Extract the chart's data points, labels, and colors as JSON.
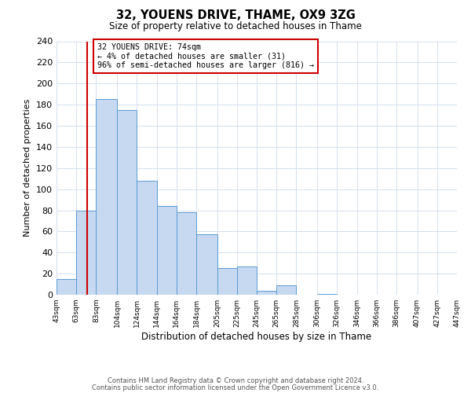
{
  "title": "32, YOUENS DRIVE, THAME, OX9 3ZG",
  "subtitle": "Size of property relative to detached houses in Thame",
  "xlabel": "Distribution of detached houses by size in Thame",
  "ylabel": "Number of detached properties",
  "bar_edges": [
    43,
    63,
    83,
    104,
    124,
    144,
    164,
    184,
    205,
    225,
    245,
    265,
    285,
    306,
    326,
    346,
    366,
    386,
    407,
    427,
    447
  ],
  "bar_heights": [
    15,
    80,
    185,
    175,
    108,
    84,
    78,
    57,
    25,
    27,
    4,
    9,
    0,
    1,
    0,
    0,
    0,
    0,
    0,
    0
  ],
  "bar_color": "#c6d9f0",
  "bar_edge_color": "#5b9bd5",
  "highlight_line_x": 74,
  "highlight_line_color": "#cc0000",
  "annotation_text_line1": "32 YOUENS DRIVE: 74sqm",
  "annotation_text_line2": "← 4% of detached houses are smaller (31)",
  "annotation_text_line3": "96% of semi-detached houses are larger (816) →",
  "annotation_box_color": "#cc0000",
  "ylim": [
    0,
    240
  ],
  "xlim": [
    43,
    447
  ],
  "tick_labels": [
    "43sqm",
    "63sqm",
    "83sqm",
    "104sqm",
    "124sqm",
    "144sqm",
    "164sqm",
    "184sqm",
    "205sqm",
    "225sqm",
    "245sqm",
    "265sqm",
    "285sqm",
    "306sqm",
    "326sqm",
    "346sqm",
    "366sqm",
    "386sqm",
    "407sqm",
    "427sqm",
    "447sqm"
  ],
  "tick_positions": [
    43,
    63,
    83,
    104,
    124,
    144,
    164,
    184,
    205,
    225,
    245,
    265,
    285,
    306,
    326,
    346,
    366,
    386,
    407,
    427,
    447
  ],
  "yticks": [
    0,
    20,
    40,
    60,
    80,
    100,
    120,
    140,
    160,
    180,
    200,
    220,
    240
  ],
  "footer_line1": "Contains HM Land Registry data © Crown copyright and database right 2024.",
  "footer_line2": "Contains public sector information licensed under the Open Government Licence v3.0.",
  "background_color": "#ffffff",
  "grid_color": "#d5e0ee"
}
